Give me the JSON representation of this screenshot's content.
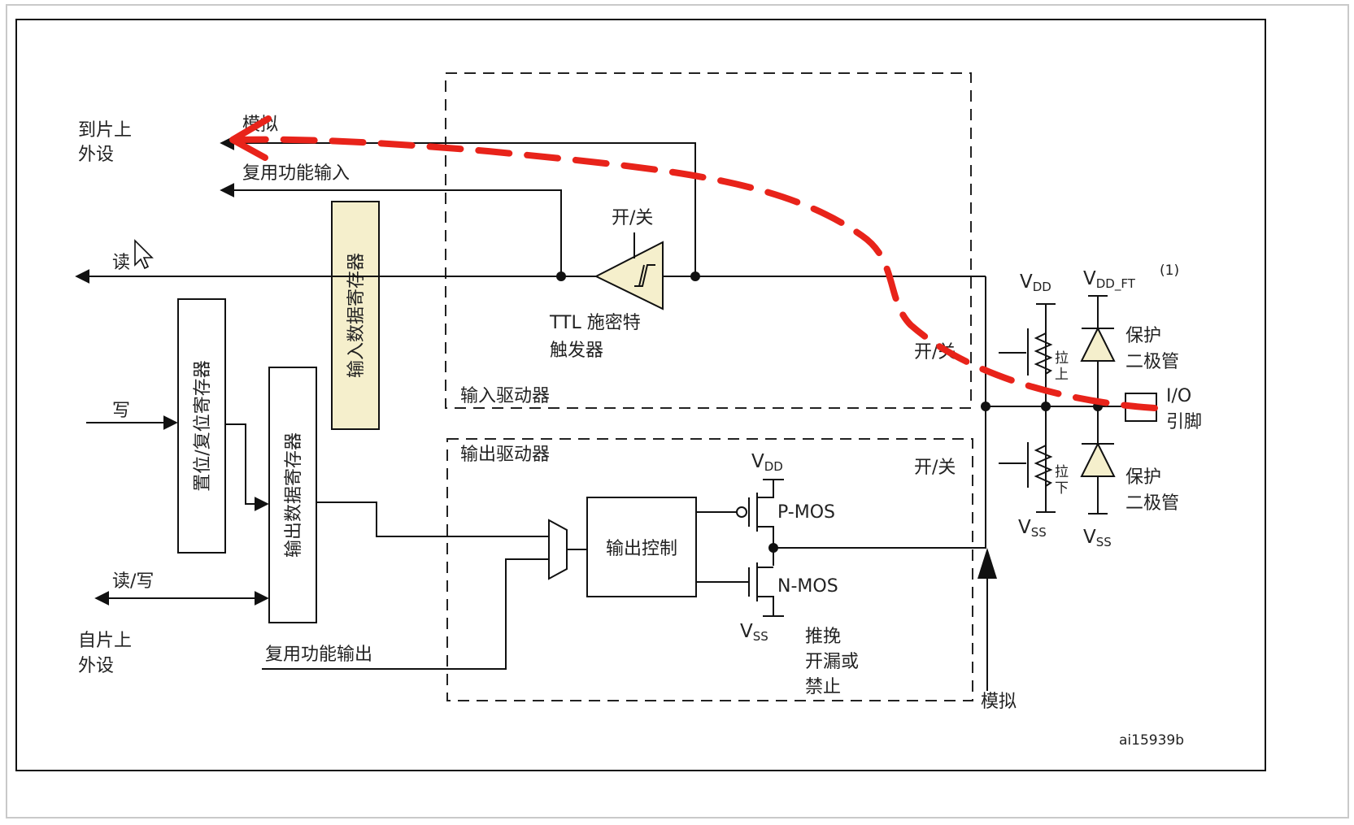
{
  "diagram": {
    "labels": {
      "to_periph_1": "到片上",
      "to_periph_2": "外设",
      "analog_top": "模拟",
      "alt_func_input": "复用功能输入",
      "read": "读",
      "write": "写",
      "read_write": "读/写",
      "from_periph_1": "自片上",
      "from_periph_2": "外设",
      "alt_func_output": "复用功能输出",
      "input_data_register": "输入数据寄存器",
      "bit_set_reset_register": "置位/复位寄存器",
      "output_data_register": "输出数据寄存器",
      "on_off_schmitt": "开/关",
      "ttl_schmitt_1": "TTL 施密特",
      "ttl_schmitt_2": "触发器",
      "input_driver": "输入驱动器",
      "on_off_input": "开/关",
      "output_driver": "输出驱动器",
      "on_off_output": "开/关",
      "output_control": "输出控制",
      "vdd_out": "V",
      "vdd_out_sub": "DD",
      "vss_out": "V",
      "vss_out_sub": "SS",
      "pmos": "P-MOS",
      "nmos": "N-MOS",
      "mode_1": "推挽",
      "mode_2": "开漏或",
      "mode_3": "禁止",
      "analog_bottom": "模拟",
      "vdd_pin": "V",
      "vdd_pin_sub": "DD",
      "vdd_ft": "V",
      "vdd_ft_sub": "DD_FT",
      "vdd_ft_note": "(1)",
      "pull_up_1": "拉",
      "pull_up_2": "上",
      "pull_down_1": "拉",
      "pull_down_2": "下",
      "protect_diode_1": "保护",
      "protect_diode_2": "二极管",
      "protect_diode_b1": "保护",
      "protect_diode_b2": "二极管",
      "io_pin_1": "I/O",
      "io_pin_2": "引脚",
      "vss_pin": "V",
      "vss_pin_sub": "SS",
      "vss_diode": "V",
      "vss_diode_sub": "SS",
      "figure_id": "ai15939b"
    },
    "colors": {
      "line": "#111111",
      "register_fill": "#f5efcc",
      "schmitt_fill": "#f5efcc",
      "highlight_path": "#e8231a"
    },
    "icons": {
      "cursor": "mouse-pointer-icon"
    }
  }
}
